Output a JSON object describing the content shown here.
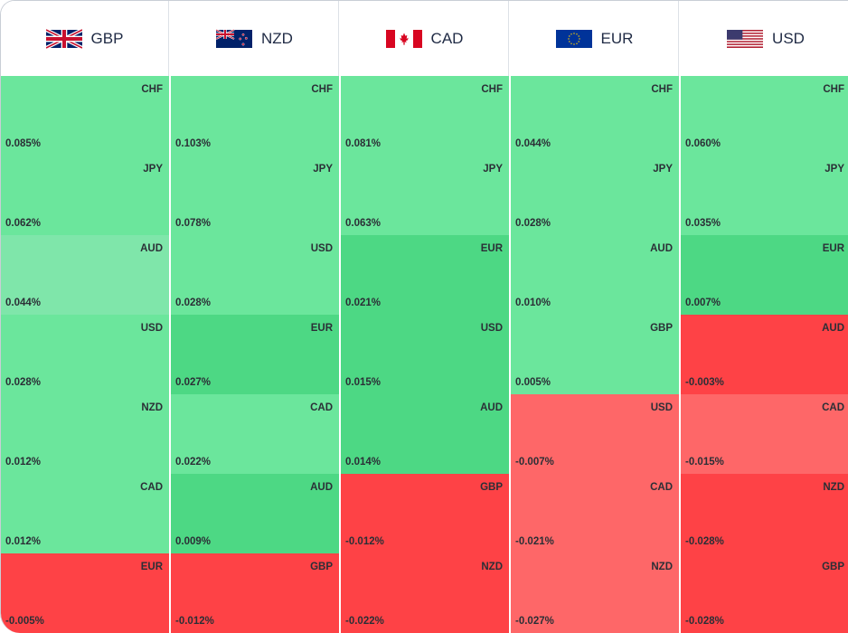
{
  "columns": [
    {
      "currency": "GBP",
      "flag": "uk-flag-icon",
      "cells": [
        {
          "pair": "CHF",
          "value": "0.085%",
          "level": "g1"
        },
        {
          "pair": "JPY",
          "value": "0.062%",
          "level": "g1"
        },
        {
          "pair": "AUD",
          "value": "0.044%",
          "level": "g0"
        },
        {
          "pair": "USD",
          "value": "0.028%",
          "level": "g1"
        },
        {
          "pair": "NZD",
          "value": "0.012%",
          "level": "g1"
        },
        {
          "pair": "CAD",
          "value": "0.012%",
          "level": "g1"
        },
        {
          "pair": "EUR",
          "value": "-0.005%",
          "level": "r2"
        }
      ]
    },
    {
      "currency": "NZD",
      "flag": "nz-flag-icon",
      "cells": [
        {
          "pair": "CHF",
          "value": "0.103%",
          "level": "g1"
        },
        {
          "pair": "JPY",
          "value": "0.078%",
          "level": "g1"
        },
        {
          "pair": "USD",
          "value": "0.028%",
          "level": "g1"
        },
        {
          "pair": "EUR",
          "value": "0.027%",
          "level": "g2"
        },
        {
          "pair": "CAD",
          "value": "0.022%",
          "level": "g1"
        },
        {
          "pair": "AUD",
          "value": "0.009%",
          "level": "g2"
        },
        {
          "pair": "GBP",
          "value": "-0.012%",
          "level": "r2"
        }
      ]
    },
    {
      "currency": "CAD",
      "flag": "ca-flag-icon",
      "cells": [
        {
          "pair": "CHF",
          "value": "0.081%",
          "level": "g1"
        },
        {
          "pair": "JPY",
          "value": "0.063%",
          "level": "g1"
        },
        {
          "pair": "EUR",
          "value": "0.021%",
          "level": "g2"
        },
        {
          "pair": "USD",
          "value": "0.015%",
          "level": "g2"
        },
        {
          "pair": "AUD",
          "value": "0.014%",
          "level": "g2"
        },
        {
          "pair": "GBP",
          "value": "-0.012%",
          "level": "r2"
        },
        {
          "pair": "NZD",
          "value": "-0.022%",
          "level": "r2"
        }
      ]
    },
    {
      "currency": "EUR",
      "flag": "eu-flag-icon",
      "cells": [
        {
          "pair": "CHF",
          "value": "0.044%",
          "level": "g1"
        },
        {
          "pair": "JPY",
          "value": "0.028%",
          "level": "g1"
        },
        {
          "pair": "AUD",
          "value": "0.010%",
          "level": "g1"
        },
        {
          "pair": "GBP",
          "value": "0.005%",
          "level": "g1"
        },
        {
          "pair": "USD",
          "value": "-0.007%",
          "level": "r1"
        },
        {
          "pair": "CAD",
          "value": "-0.021%",
          "level": "r1"
        },
        {
          "pair": "NZD",
          "value": "-0.027%",
          "level": "r1"
        }
      ]
    },
    {
      "currency": "USD",
      "flag": "us-flag-icon",
      "cells": [
        {
          "pair": "CHF",
          "value": "0.060%",
          "level": "g1"
        },
        {
          "pair": "JPY",
          "value": "0.035%",
          "level": "g1"
        },
        {
          "pair": "EUR",
          "value": "0.007%",
          "level": "g2"
        },
        {
          "pair": "AUD",
          "value": "-0.003%",
          "level": "r2"
        },
        {
          "pair": "CAD",
          "value": "-0.015%",
          "level": "r1"
        },
        {
          "pair": "NZD",
          "value": "-0.028%",
          "level": "r2"
        },
        {
          "pair": "GBP",
          "value": "-0.028%",
          "level": "r2"
        }
      ]
    }
  ],
  "colors": {
    "green_light": "#6be69c",
    "green_pale": "#7fe6aa",
    "green_strong": "#4dd884",
    "red_light": "#fe6768",
    "red_strong": "#fe4246"
  }
}
